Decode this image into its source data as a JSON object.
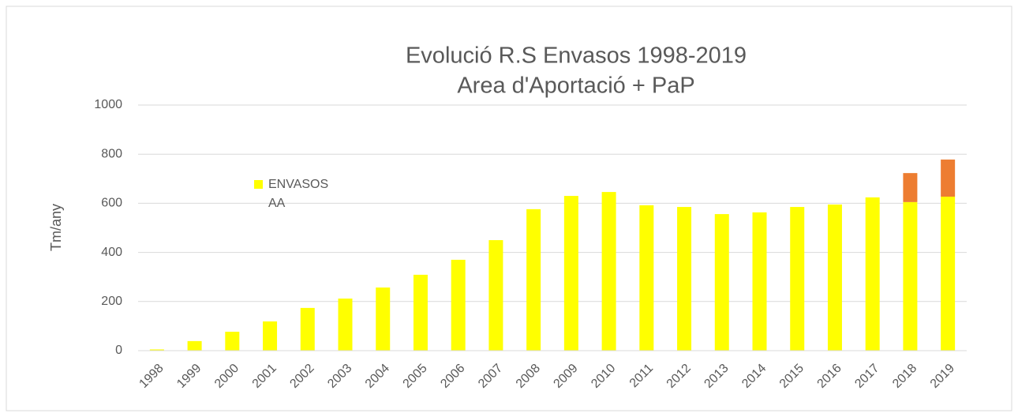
{
  "chart_data": {
    "type": "bar",
    "stacked": true,
    "title": [
      "Evolució R.S Envasos 1998-2019",
      "Area d'Aportació + PaP"
    ],
    "y_label": "Tm/any",
    "categories": [
      "1998",
      "1999",
      "2000",
      "2001",
      "2002",
      "2003",
      "2004",
      "2005",
      "2006",
      "2007",
      "2008",
      "2009",
      "2010",
      "2011",
      "2012",
      "2013",
      "2014",
      "2015",
      "2016",
      "2017",
      "2018",
      "2019"
    ],
    "series": [
      {
        "name": "ENVASOS AA",
        "color": "#ffff00",
        "values": [
          5,
          39,
          77,
          119,
          174,
          212,
          257,
          309,
          370,
          450,
          576,
          630,
          646,
          592,
          585,
          556,
          563,
          585,
          595,
          624,
          605,
          627
        ]
      },
      {
        "color": "#ed7d31",
        "values": [
          0,
          0,
          0,
          0,
          0,
          0,
          0,
          0,
          0,
          0,
          0,
          0,
          0,
          0,
          0,
          0,
          0,
          0,
          0,
          0,
          118,
          151
        ]
      }
    ],
    "ylim": [
      0,
      1000
    ],
    "yticks": [
      0,
      200,
      400,
      600,
      800,
      1000
    ],
    "grid": true,
    "legend": "upper left"
  }
}
